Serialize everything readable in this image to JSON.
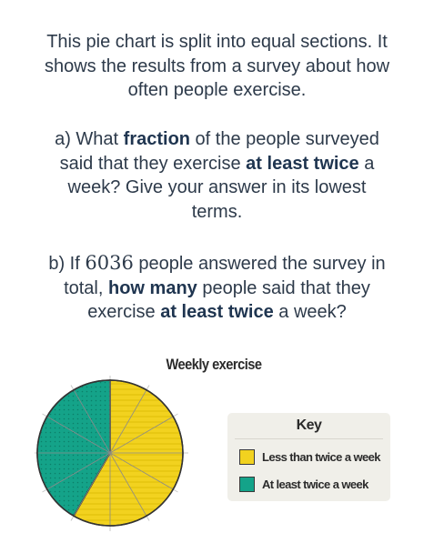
{
  "intro": {
    "lines": [
      "This pie chart is split into equal sections. It",
      "shows the results from a survey about how",
      "often people exercise."
    ]
  },
  "question_a": {
    "line1_a": "a) What ",
    "line1_b": "fraction",
    "line1_c": " of the people surveyed",
    "line2_a": "said that they exercise ",
    "line2_b": "at least twice",
    "line2_c": " a",
    "line3": "week? Give your answer in its lowest",
    "line4": "terms."
  },
  "question_b": {
    "line1_a": "b) If ",
    "line1_num": "6036",
    "line1_c": " people answered the survey in",
    "line2_a": "total, ",
    "line2_b": "how many",
    "line2_c": " people said that they",
    "line3_a": "exercise ",
    "line3_b": "at least twice",
    "line3_c": " a week?"
  },
  "chart_data": {
    "type": "pie",
    "title": "Weekly exercise",
    "total_sections": 12,
    "start_angle_degrees_clockwise_from_top": 0,
    "slices": [
      {
        "label": "Less than twice a week",
        "sections": 7,
        "color": "#f2d21f"
      },
      {
        "label": "At least twice a week",
        "sections": 5,
        "color": "#14a389"
      }
    ]
  },
  "key": {
    "title": "Key",
    "items": [
      {
        "label": "Less than twice a week",
        "color": "#f2d21f"
      },
      {
        "label": "At least twice a week",
        "color": "#14a389"
      }
    ]
  }
}
